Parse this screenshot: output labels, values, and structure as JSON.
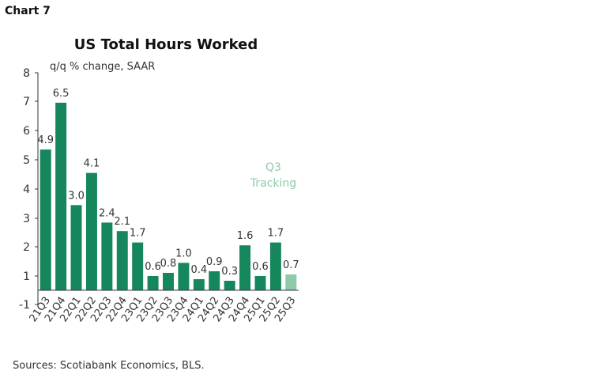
{
  "chart_label": "Chart 7",
  "chart_data": {
    "type": "bar",
    "title": "US Total Hours Worked",
    "ylabel": "q/q % change, SAAR",
    "xlabel": "",
    "ylim": [
      -1,
      8
    ],
    "yticks": [
      -1,
      1,
      2,
      3,
      4,
      5,
      6,
      7,
      8
    ],
    "grid": false,
    "categories": [
      "21Q3",
      "21Q4",
      "22Q1",
      "22Q2",
      "22Q3",
      "22Q4",
      "23Q1",
      "23Q2",
      "23Q3",
      "23Q4",
      "24Q1",
      "24Q2",
      "24Q3",
      "24Q4",
      "25Q1",
      "25Q2",
      "25Q3"
    ],
    "values": [
      4.9,
      6.5,
      3.0,
      4.1,
      2.4,
      2.1,
      1.7,
      0.6,
      0.8,
      1.0,
      0.4,
      0.9,
      0.3,
      1.6,
      0.6,
      1.7,
      0.7
    ],
    "data_labels": [
      "4.9",
      "6.5",
      "3.0",
      "4.1",
      "2.4",
      "2.1",
      "1.7",
      "0.6",
      "0.8",
      "1.0",
      "0.4",
      "0.9",
      "0.3",
      "1.6",
      "0.6",
      "1.7",
      "0.7"
    ],
    "annotation": "Q3 Tracking",
    "annotation_lines": [
      "Q3",
      "Tracking"
    ],
    "colors": {
      "bar": "#16875c",
      "tracking_bar": "#8fcaa8",
      "annotation": "#8fcaa8"
    }
  },
  "sources": "Sources: Scotiabank Economics, BLS."
}
